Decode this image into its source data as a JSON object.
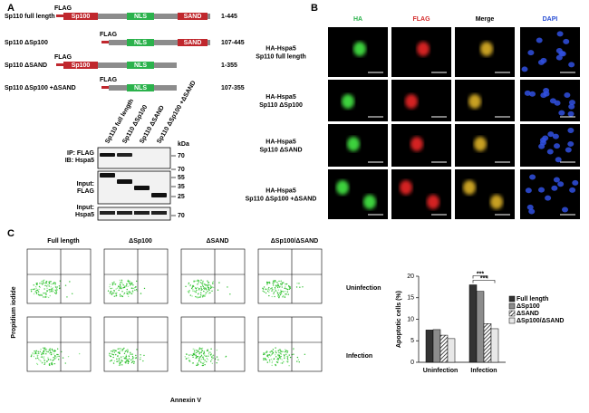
{
  "panel_a": {
    "label": "A",
    "constructs": [
      {
        "name": "Sp110 full length",
        "tag": "FLAG",
        "domains": [
          "Sp100",
          "NLS",
          "SAND"
        ],
        "range": "1-445"
      },
      {
        "name": "Sp110 ΔSp100",
        "tag": "FLAG",
        "domains": [
          "NLS",
          "SAND"
        ],
        "range": "107-445"
      },
      {
        "name": "Sp110 ΔSAND",
        "tag": "FLAG",
        "domains": [
          "Sp100",
          "NLS"
        ],
        "range": "1-355"
      },
      {
        "name": "Sp110 ΔSp100 +ΔSAND",
        "tag": "FLAG",
        "domains": [
          "NLS"
        ],
        "range": "107-355"
      }
    ],
    "blot": {
      "lanes": [
        "Sp110 full length",
        "Sp110 ΔSp100",
        "Sp110 ΔSAND",
        "Sp110 ΔSp100 +ΔSAND"
      ],
      "labels": [
        "IP: FLAG",
        "IB: Hspa5",
        "Input:",
        "FLAG",
        "Input:",
        "Hspa5"
      ],
      "kda": "kDa",
      "markers": [
        "70",
        "70",
        "55",
        "35",
        "25",
        "70"
      ]
    }
  },
  "panel_b": {
    "label": "B",
    "columns": [
      "HA",
      "FLAG",
      "Merge",
      "DAPI"
    ],
    "rows": [
      [
        "HA-Hspa5",
        "Sp110 full length"
      ],
      [
        "HA-Hspa5",
        "Sp110 ΔSp100"
      ],
      [
        "HA-Hspa5",
        "Sp110 ΔSAND"
      ],
      [
        "HA-Hspa5",
        "Sp110 ΔSp100 +ΔSAND"
      ]
    ]
  },
  "panel_c": {
    "label": "C",
    "columns": [
      "Full length",
      "ΔSp100",
      "ΔSAND",
      "ΔSp100/ΔSAND"
    ],
    "rows": [
      "Uninfection",
      "Infection"
    ],
    "x_axis": "Annexin V",
    "y_axis": "Propidium iodide"
  },
  "chart_data": {
    "type": "bar",
    "y_label": "Apoptotic cells (%)",
    "categories": [
      "Uninfection",
      "Infection"
    ],
    "series": [
      {
        "name": "Full length",
        "color": "#333333",
        "values": [
          7.5,
          18
        ]
      },
      {
        "name": "ΔSp100",
        "color": "#8c8c8c",
        "values": [
          7.6,
          16.5
        ]
      },
      {
        "name": "ΔSAND",
        "color": "#ffffff",
        "hatch": true,
        "values": [
          6.3,
          9
        ]
      },
      {
        "name": "ΔSp100/ΔSAND",
        "color": "#e8e8e8",
        "values": [
          5.5,
          7.8
        ]
      }
    ],
    "ylim": [
      0,
      20
    ],
    "yticks": [
      0,
      5,
      10,
      15,
      20
    ],
    "annotations": [
      "***",
      "***"
    ]
  }
}
